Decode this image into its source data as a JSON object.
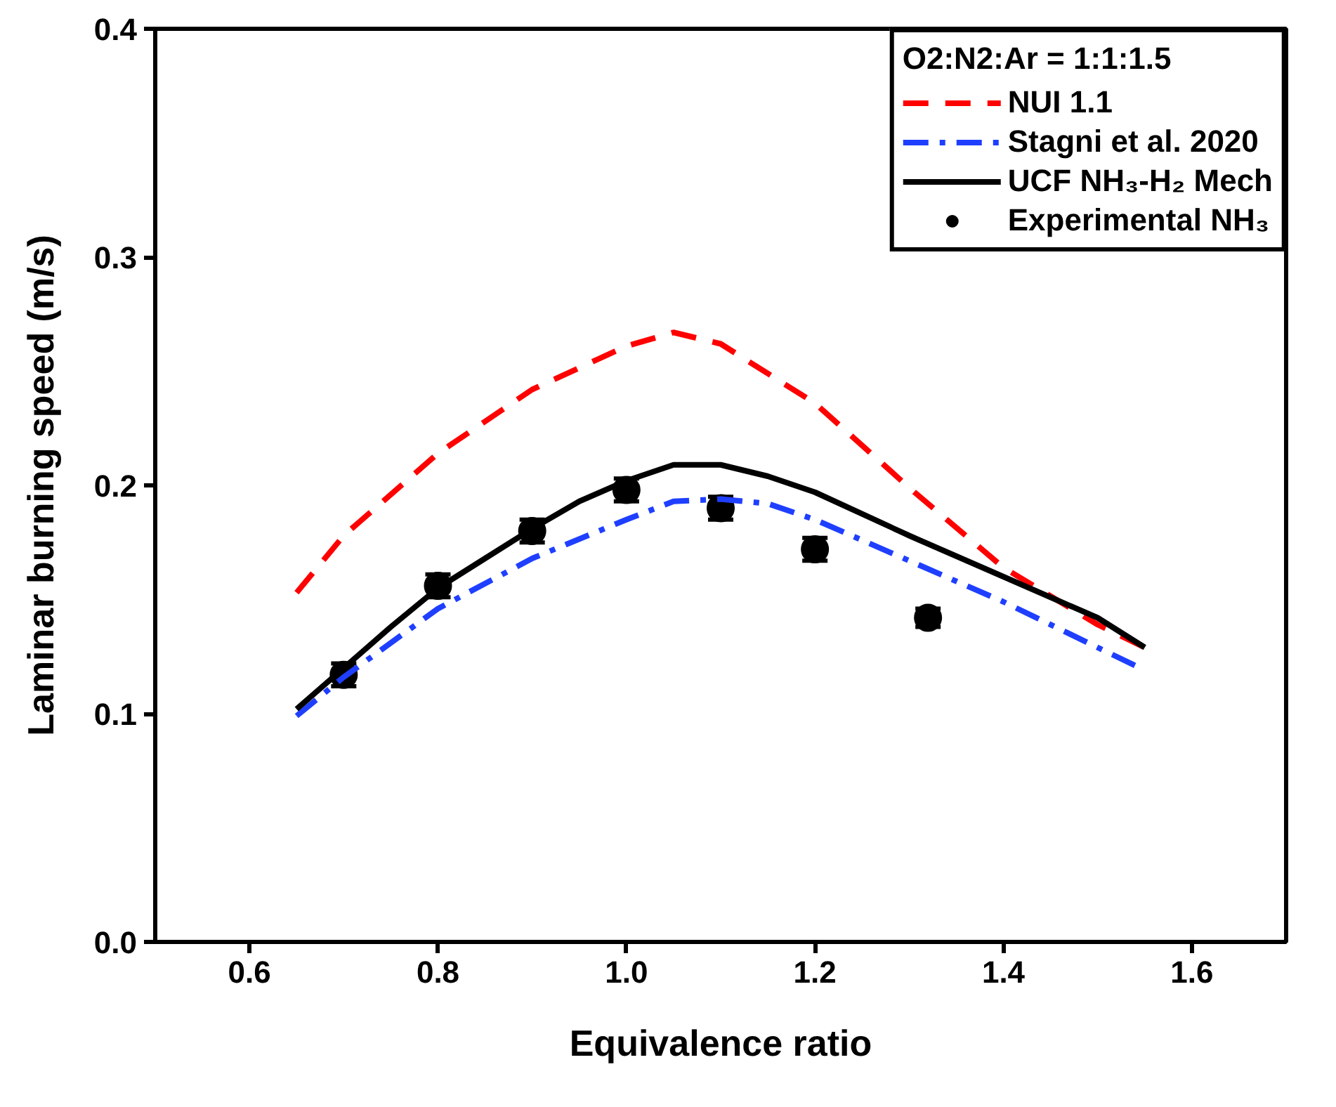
{
  "chart_data": {
    "type": "line",
    "xlabel": "Equivalence ratio",
    "ylabel": "Laminar burning speed (m/s)",
    "legend_title": "O2:N2:Ar = 1:1:1.5",
    "xlim": [
      0.5,
      1.7
    ],
    "xticks": [
      0.6,
      0.8,
      {
        "value": 1.0,
        "label": "1.0"
      },
      1.2,
      1.4,
      1.6
    ],
    "ylim": [
      0.0,
      0.4
    ],
    "yticks": [
      {
        "value": 0.0,
        "label": "0.0"
      },
      0.1,
      0.2,
      0.3,
      0.4
    ],
    "legend": "top right",
    "grid": false,
    "series": [
      {
        "name": "NUI 1.1",
        "color": "#ff0000",
        "line_style": "dashed",
        "x": [
          0.65,
          0.7,
          0.8,
          0.9,
          1.0,
          1.05,
          1.1,
          1.2,
          1.3,
          1.4,
          1.5,
          1.55
        ],
        "values": [
          0.153,
          0.178,
          0.214,
          0.242,
          0.261,
          0.267,
          0.262,
          0.236,
          0.199,
          0.164,
          0.139,
          0.129
        ]
      },
      {
        "name": "Stagni et al. 2020",
        "color": "#1f3fff",
        "line_style": "dashdot",
        "x": [
          0.65,
          0.7,
          0.8,
          0.9,
          1.0,
          1.05,
          1.1,
          1.15,
          1.2,
          1.3,
          1.4,
          1.5,
          1.54
        ],
        "values": [
          0.099,
          0.116,
          0.146,
          0.168,
          0.185,
          0.193,
          0.194,
          0.192,
          0.185,
          0.167,
          0.149,
          0.129,
          0.121
        ]
      },
      {
        "name": "UCF NH₃-H₂ Mech",
        "color": "#000000",
        "line_style": "solid",
        "x": [
          0.65,
          0.7,
          0.75,
          0.8,
          0.85,
          0.9,
          0.95,
          1.0,
          1.05,
          1.1,
          1.15,
          1.2,
          1.3,
          1.4,
          1.5,
          1.55
        ],
        "values": [
          0.102,
          0.12,
          0.138,
          0.155,
          0.168,
          0.181,
          0.193,
          0.202,
          0.209,
          0.209,
          0.204,
          0.197,
          0.178,
          0.16,
          0.142,
          0.129
        ]
      },
      {
        "name": "Experimental NH₃",
        "type": "scatter",
        "marker": "circle",
        "color": "#000000",
        "x": [
          0.7,
          0.8,
          0.9,
          1.0,
          1.1,
          1.2,
          1.32
        ],
        "values": [
          0.117,
          0.156,
          0.18,
          0.198,
          0.19,
          0.172,
          0.142
        ],
        "errors": [
          0.005,
          0.005,
          0.005,
          0.005,
          0.005,
          0.005,
          0.004
        ]
      }
    ]
  }
}
